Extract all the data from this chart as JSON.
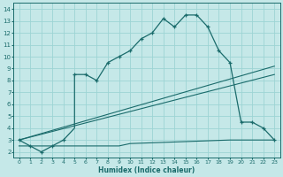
{
  "xlabel": "Humidex (Indice chaleur)",
  "xlim": [
    -0.5,
    23.5
  ],
  "ylim": [
    1.5,
    14.5
  ],
  "xticks": [
    0,
    1,
    2,
    3,
    4,
    5,
    6,
    7,
    8,
    9,
    10,
    11,
    12,
    13,
    14,
    15,
    16,
    17,
    18,
    19,
    20,
    21,
    22,
    23
  ],
  "yticks": [
    2,
    3,
    4,
    5,
    6,
    7,
    8,
    9,
    10,
    11,
    12,
    13,
    14
  ],
  "bg_color": "#c5e8e8",
  "line_color": "#1a6b6b",
  "grid_color": "#9dd4d4",
  "humidex_line": [
    [
      0,
      3.0
    ],
    [
      1,
      2.5
    ],
    [
      2,
      2.0
    ],
    [
      3,
      2.5
    ],
    [
      4,
      3.0
    ],
    [
      5,
      4.0
    ],
    [
      5,
      8.5
    ],
    [
      6,
      8.5
    ],
    [
      7,
      8.0
    ],
    [
      8,
      9.5
    ],
    [
      9,
      10.0
    ],
    [
      10,
      10.5
    ],
    [
      11,
      11.5
    ],
    [
      12,
      12.0
    ],
    [
      13,
      13.2
    ],
    [
      14,
      12.5
    ],
    [
      15,
      13.5
    ],
    [
      16,
      13.5
    ],
    [
      17,
      12.5
    ],
    [
      18,
      10.5
    ],
    [
      19,
      9.5
    ],
    [
      20,
      4.5
    ],
    [
      21,
      4.5
    ],
    [
      22,
      4.0
    ],
    [
      23,
      3.0
    ]
  ],
  "humidex_markers": [
    [
      0,
      3.0
    ],
    [
      1,
      2.5
    ],
    [
      2,
      2.0
    ],
    [
      3,
      2.5
    ],
    [
      4,
      3.0
    ],
    [
      5,
      8.5
    ],
    [
      6,
      8.5
    ],
    [
      7,
      8.0
    ],
    [
      8,
      9.5
    ],
    [
      9,
      10.0
    ],
    [
      10,
      10.5
    ],
    [
      11,
      11.5
    ],
    [
      12,
      12.0
    ],
    [
      13,
      13.2
    ],
    [
      14,
      12.5
    ],
    [
      15,
      13.5
    ],
    [
      16,
      13.5
    ],
    [
      17,
      12.5
    ],
    [
      18,
      10.5
    ],
    [
      19,
      9.5
    ],
    [
      20,
      4.5
    ],
    [
      21,
      4.5
    ],
    [
      22,
      4.0
    ],
    [
      23,
      3.0
    ]
  ],
  "linear_line1": [
    [
      0,
      3.0
    ],
    [
      23,
      9.2
    ]
  ],
  "linear_line2": [
    [
      0,
      3.0
    ],
    [
      23,
      8.5
    ]
  ],
  "flat_line": [
    [
      0,
      2.5
    ],
    [
      9,
      2.5
    ],
    [
      10,
      2.7
    ],
    [
      19,
      3.0
    ],
    [
      20,
      3.0
    ],
    [
      23,
      3.0
    ]
  ]
}
